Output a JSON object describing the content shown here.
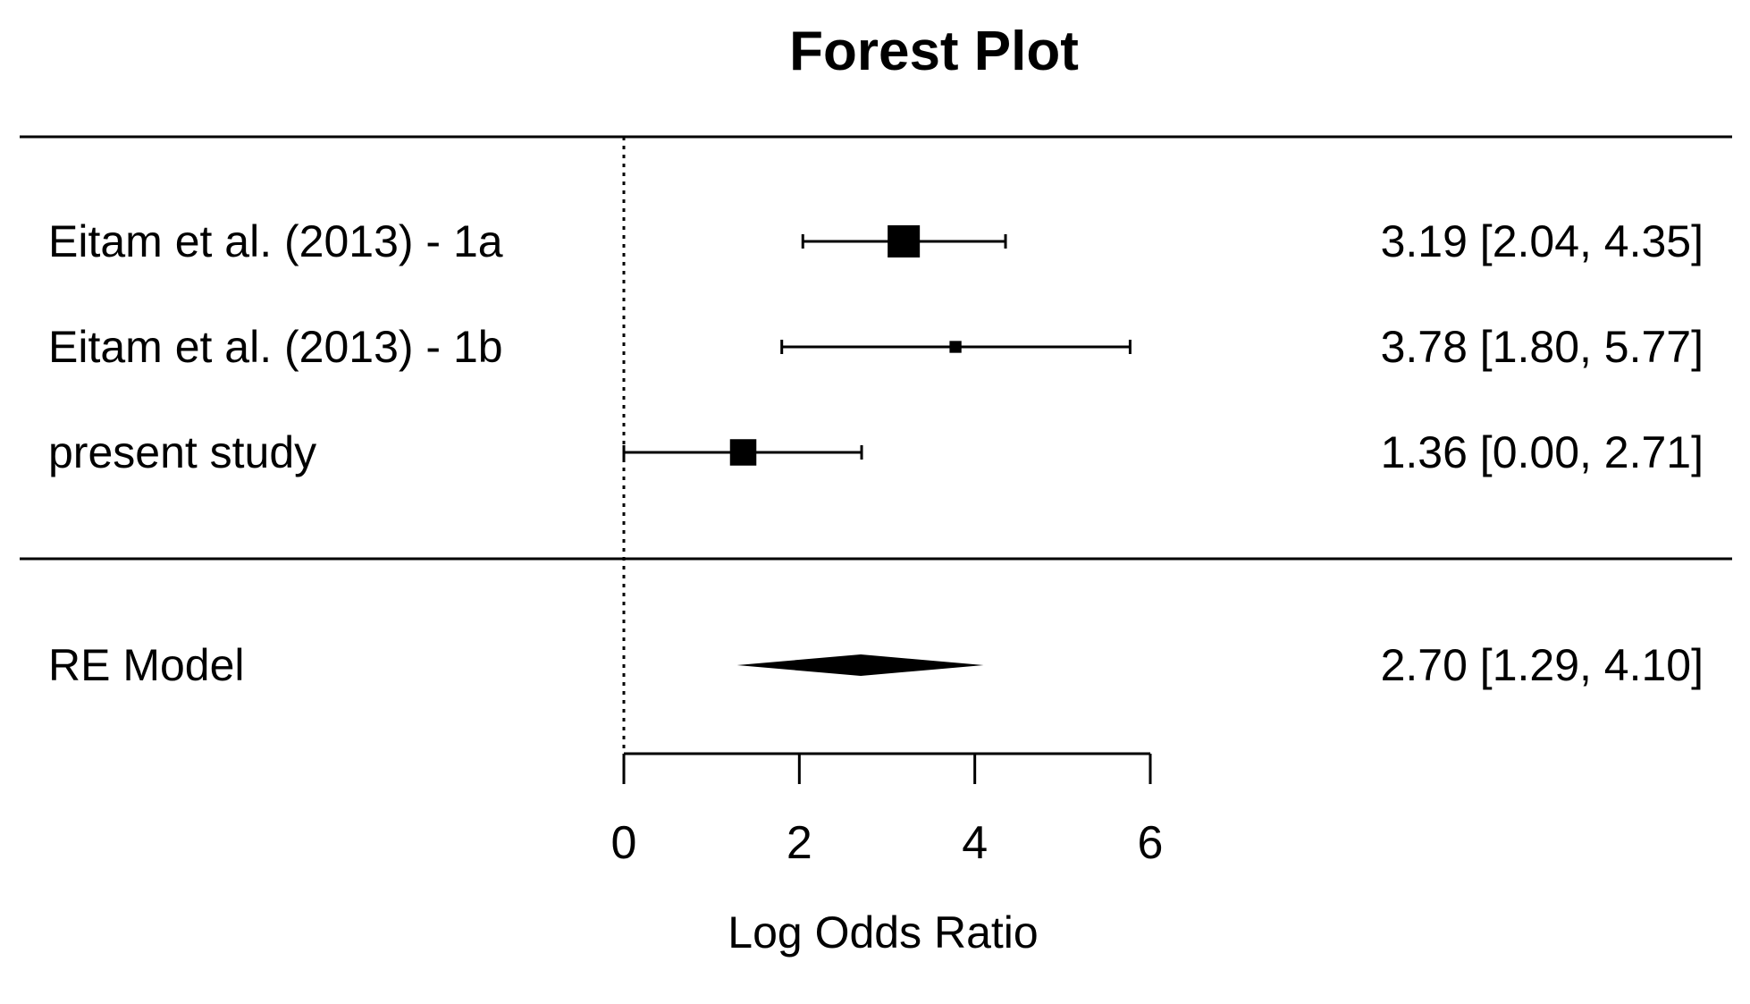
{
  "chart_data": {
    "type": "forest",
    "title": "Forest Plot",
    "xlabel": "Log Odds Ratio",
    "xlim": [
      0,
      6
    ],
    "xticks": [
      0,
      2,
      4,
      6
    ],
    "reference_line": 0,
    "studies": [
      {
        "label": "Eitam et al. (2013) - 1a",
        "estimate": 3.19,
        "ci_lower": 2.04,
        "ci_upper": 4.35,
        "text": "3.19 [2.04, 4.35]",
        "weight_size": 1.0
      },
      {
        "label": "Eitam et al. (2013) - 1b",
        "estimate": 3.78,
        "ci_lower": 1.8,
        "ci_upper": 5.77,
        "text": "3.78 [1.80, 5.77]",
        "weight_size": 0.37
      },
      {
        "label": "present study",
        "estimate": 1.36,
        "ci_lower": 0.0,
        "ci_upper": 2.71,
        "text": "1.36 [0.00, 2.71]",
        "weight_size": 0.82
      }
    ],
    "summary": {
      "label": "RE Model",
      "estimate": 2.7,
      "ci_lower": 1.29,
      "ci_upper": 4.1,
      "text": "2.70 [1.29, 4.10]"
    },
    "colors": {
      "ink": "#000000",
      "background": "#ffffff"
    }
  }
}
